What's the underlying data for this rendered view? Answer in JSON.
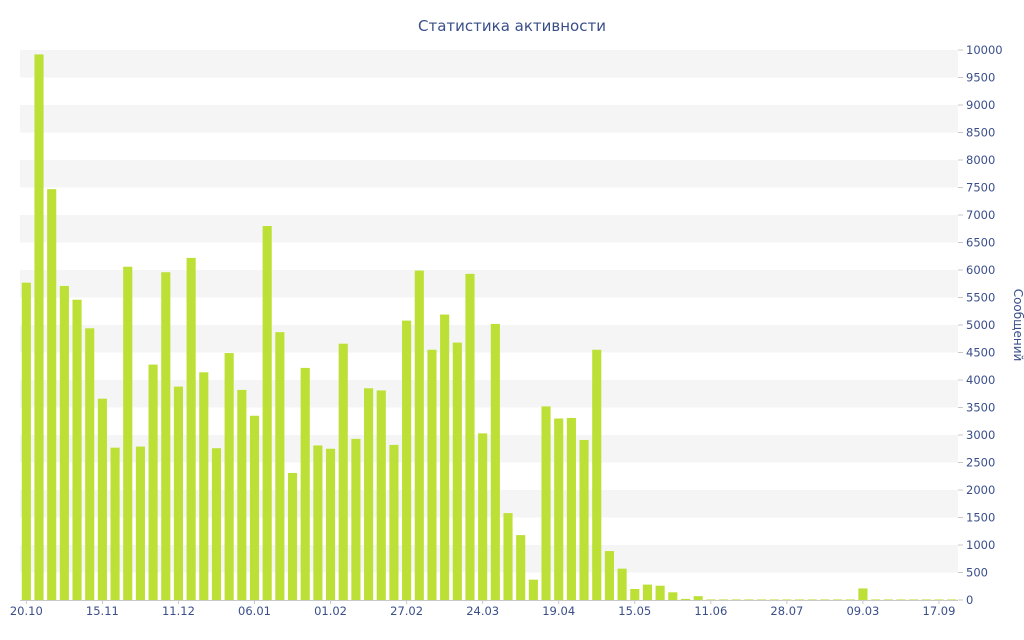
{
  "chart_data": {
    "type": "bar",
    "title": "Статистика активности",
    "ylabel": "Сообщений",
    "ylim": [
      0,
      10000
    ],
    "y_ticks": [
      0,
      500,
      1000,
      1500,
      2000,
      2500,
      3000,
      3500,
      4000,
      4500,
      5000,
      5500,
      6000,
      6500,
      7000,
      7500,
      8000,
      8500,
      9000,
      9500,
      10000
    ],
    "y_axis_position": "right",
    "x_tick_labels": [
      "20.10",
      "15.11",
      "11.12",
      "06.01",
      "01.02",
      "27.02",
      "24.03",
      "19.04",
      "15.05",
      "11.06",
      "28.07",
      "09.03",
      "17.09"
    ],
    "grid": "alternating-horizontal-bands",
    "colors": {
      "bar": "#bde036",
      "text": "#3a4f8a",
      "band": "#f5f5f5"
    },
    "values": [
      5770,
      9920,
      7470,
      5710,
      5460,
      4940,
      3660,
      2770,
      6060,
      2790,
      4280,
      5960,
      3880,
      6220,
      4140,
      2760,
      4490,
      3820,
      3350,
      6800,
      4870,
      2310,
      4220,
      2810,
      2750,
      4660,
      2930,
      3850,
      3810,
      2820,
      5080,
      5990,
      4550,
      5190,
      4680,
      5930,
      3030,
      5020,
      1580,
      1180,
      370,
      3520,
      3300,
      3310,
      2910,
      4550,
      890,
      570,
      200,
      280,
      260,
      140,
      20,
      70,
      10,
      10,
      10,
      10,
      10,
      10,
      10,
      10,
      10,
      10,
      10,
      10,
      210,
      10,
      10,
      10,
      10,
      10,
      10,
      10
    ]
  }
}
